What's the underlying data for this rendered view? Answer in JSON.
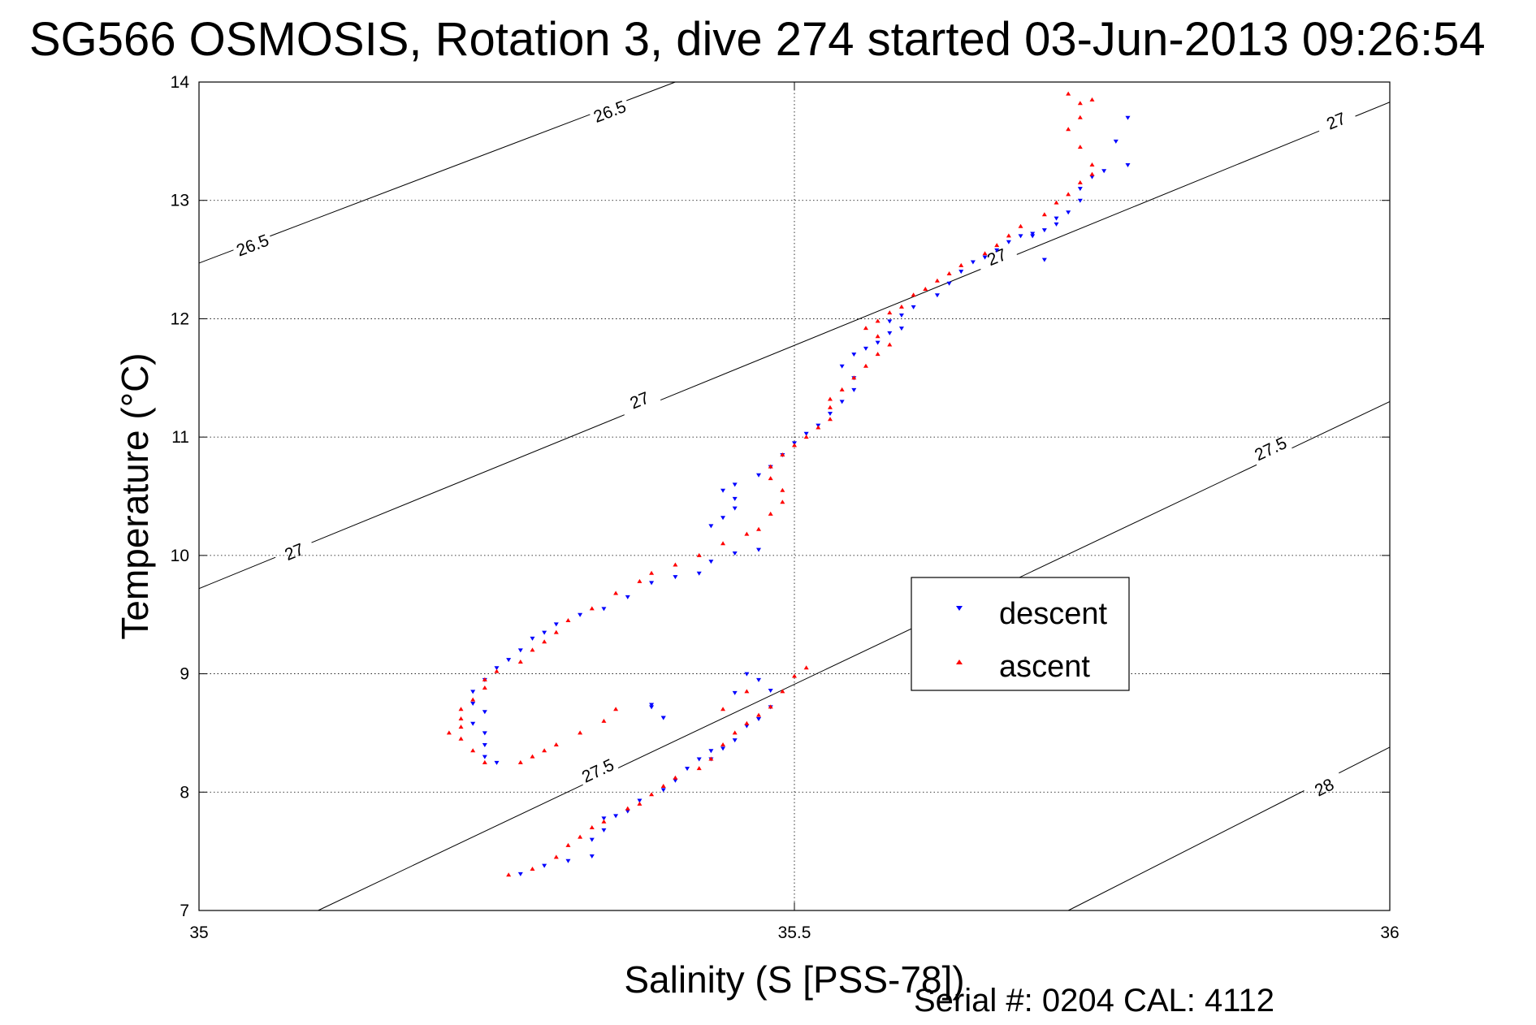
{
  "chart_data": {
    "type": "scatter",
    "title": "SG566 OSMOSIS, Rotation 3, dive 274 started 03-Jun-2013 09:26:54",
    "xlabel": "Salinity (S [PSS-78])",
    "ylabel": "Temperature (°C)",
    "xlim": [
      35,
      36
    ],
    "ylim": [
      7,
      14
    ],
    "xticks": [
      "35",
      "35.5",
      "36"
    ],
    "yticks": [
      "7",
      "8",
      "9",
      "10",
      "11",
      "12",
      "13",
      "14"
    ],
    "grid": true,
    "legend_position": "center-right",
    "footer": "Serial #: 0204  CAL: 4112",
    "colors": {
      "descent": "#0000ff",
      "ascent": "#ff0000",
      "contour": "#000000"
    },
    "contours": [
      {
        "level": "26.5",
        "points": [
          [
            35.0,
            12.47
          ],
          [
            35.4,
            14.0
          ]
        ],
        "labels": [
          [
            35.045,
            12.62
          ],
          [
            35.345,
            13.75
          ]
        ]
      },
      {
        "level": "27",
        "points": [
          [
            35.0,
            9.72
          ],
          [
            36.0,
            13.83
          ]
        ],
        "labels": [
          [
            35.08,
            10.03
          ],
          [
            35.37,
            11.31
          ],
          [
            35.67,
            12.52
          ],
          [
            35.955,
            13.67
          ]
        ]
      },
      {
        "level": "27.5",
        "points": [
          [
            35.1,
            7.0
          ],
          [
            36.0,
            11.3
          ]
        ],
        "labels": [
          [
            35.335,
            8.18
          ],
          [
            35.9,
            10.9
          ]
        ]
      },
      {
        "level": "28",
        "points": [
          [
            35.73,
            7.0
          ],
          [
            36.0,
            8.38
          ]
        ],
        "labels": [
          [
            35.945,
            8.04
          ]
        ]
      }
    ],
    "series": [
      {
        "name": "descent",
        "marker": "triangle-down",
        "points": [
          [
            35.27,
            7.31
          ],
          [
            35.29,
            7.38
          ],
          [
            35.31,
            7.42
          ],
          [
            35.33,
            7.46
          ],
          [
            35.33,
            7.6
          ],
          [
            35.34,
            7.68
          ],
          [
            35.34,
            7.78
          ],
          [
            35.35,
            7.8
          ],
          [
            35.36,
            7.84
          ],
          [
            35.37,
            7.93
          ],
          [
            35.39,
            8.02
          ],
          [
            35.4,
            8.1
          ],
          [
            35.41,
            8.2
          ],
          [
            35.42,
            8.28
          ],
          [
            35.43,
            8.28
          ],
          [
            35.43,
            8.35
          ],
          [
            35.44,
            8.37
          ],
          [
            35.45,
            8.44
          ],
          [
            35.46,
            8.56
          ],
          [
            35.47,
            8.62
          ],
          [
            35.48,
            8.72
          ],
          [
            35.48,
            8.86
          ],
          [
            35.47,
            8.95
          ],
          [
            35.46,
            9.0
          ],
          [
            35.45,
            8.84
          ],
          [
            35.39,
            8.63
          ],
          [
            35.38,
            8.72
          ],
          [
            35.39,
            8.63
          ],
          [
            35.38,
            8.74
          ],
          [
            35.25,
            8.25
          ],
          [
            35.24,
            8.3
          ],
          [
            35.24,
            8.4
          ],
          [
            35.24,
            8.5
          ],
          [
            35.23,
            8.58
          ],
          [
            35.24,
            8.68
          ],
          [
            35.23,
            8.75
          ],
          [
            35.23,
            8.85
          ],
          [
            35.24,
            8.95
          ],
          [
            35.25,
            9.05
          ],
          [
            35.26,
            9.12
          ],
          [
            35.27,
            9.2
          ],
          [
            35.28,
            9.3
          ],
          [
            35.29,
            9.35
          ],
          [
            35.3,
            9.42
          ],
          [
            35.32,
            9.5
          ],
          [
            35.34,
            9.55
          ],
          [
            35.36,
            9.65
          ],
          [
            35.38,
            9.77
          ],
          [
            35.4,
            9.82
          ],
          [
            35.42,
            9.85
          ],
          [
            35.43,
            9.95
          ],
          [
            35.45,
            10.02
          ],
          [
            35.47,
            10.05
          ],
          [
            35.43,
            10.25
          ],
          [
            35.44,
            10.32
          ],
          [
            35.45,
            10.4
          ],
          [
            35.45,
            10.48
          ],
          [
            35.44,
            10.55
          ],
          [
            35.45,
            10.6
          ],
          [
            35.47,
            10.68
          ],
          [
            35.48,
            10.75
          ],
          [
            35.49,
            10.85
          ],
          [
            35.5,
            10.95
          ],
          [
            35.51,
            11.03
          ],
          [
            35.52,
            11.1
          ],
          [
            35.53,
            11.2
          ],
          [
            35.54,
            11.3
          ],
          [
            35.55,
            11.4
          ],
          [
            35.55,
            11.5
          ],
          [
            35.54,
            11.6
          ],
          [
            35.55,
            11.7
          ],
          [
            35.56,
            11.75
          ],
          [
            35.57,
            11.8
          ],
          [
            35.58,
            11.88
          ],
          [
            35.59,
            11.92
          ],
          [
            35.58,
            11.98
          ],
          [
            35.59,
            12.03
          ],
          [
            35.6,
            12.1
          ],
          [
            35.62,
            12.2
          ],
          [
            35.63,
            12.3
          ],
          [
            35.64,
            12.4
          ],
          [
            35.65,
            12.48
          ],
          [
            35.66,
            12.52
          ],
          [
            35.67,
            12.58
          ],
          [
            35.68,
            12.65
          ],
          [
            35.69,
            12.7
          ],
          [
            35.7,
            12.72
          ],
          [
            35.71,
            12.75
          ],
          [
            35.72,
            12.8
          ],
          [
            35.73,
            12.9
          ],
          [
            35.74,
            13.0
          ],
          [
            35.74,
            13.1
          ],
          [
            35.75,
            13.2
          ],
          [
            35.76,
            13.25
          ],
          [
            35.78,
            13.3
          ],
          [
            35.77,
            13.5
          ],
          [
            35.78,
            13.7
          ],
          [
            35.71,
            12.5
          ],
          [
            35.7,
            12.7
          ],
          [
            35.72,
            12.85
          ]
        ]
      },
      {
        "name": "ascent",
        "marker": "triangle-up",
        "points": [
          [
            35.26,
            7.3
          ],
          [
            35.28,
            7.35
          ],
          [
            35.3,
            7.45
          ],
          [
            35.31,
            7.55
          ],
          [
            35.32,
            7.62
          ],
          [
            35.33,
            7.7
          ],
          [
            35.34,
            7.75
          ],
          [
            35.36,
            7.86
          ],
          [
            35.37,
            7.9
          ],
          [
            35.38,
            7.98
          ],
          [
            35.39,
            8.05
          ],
          [
            35.4,
            8.12
          ],
          [
            35.42,
            8.2
          ],
          [
            35.43,
            8.28
          ],
          [
            35.44,
            8.4
          ],
          [
            35.45,
            8.5
          ],
          [
            35.46,
            8.58
          ],
          [
            35.47,
            8.65
          ],
          [
            35.48,
            8.72
          ],
          [
            35.49,
            8.85
          ],
          [
            35.5,
            8.98
          ],
          [
            35.51,
            9.05
          ],
          [
            35.46,
            8.85
          ],
          [
            35.44,
            8.7
          ],
          [
            35.35,
            8.7
          ],
          [
            35.34,
            8.6
          ],
          [
            35.32,
            8.5
          ],
          [
            35.3,
            8.4
          ],
          [
            35.29,
            8.35
          ],
          [
            35.28,
            8.3
          ],
          [
            35.27,
            8.25
          ],
          [
            35.24,
            8.25
          ],
          [
            35.23,
            8.35
          ],
          [
            35.22,
            8.45
          ],
          [
            35.22,
            8.55
          ],
          [
            35.21,
            8.5
          ],
          [
            35.22,
            8.62
          ],
          [
            35.22,
            8.7
          ],
          [
            35.23,
            8.78
          ],
          [
            35.24,
            8.88
          ],
          [
            35.24,
            8.95
          ],
          [
            35.25,
            9.02
          ],
          [
            35.27,
            9.1
          ],
          [
            35.28,
            9.2
          ],
          [
            35.29,
            9.27
          ],
          [
            35.3,
            9.35
          ],
          [
            35.31,
            9.45
          ],
          [
            35.33,
            9.55
          ],
          [
            35.35,
            9.68
          ],
          [
            35.37,
            9.78
          ],
          [
            35.38,
            9.85
          ],
          [
            35.4,
            9.92
          ],
          [
            35.42,
            10.0
          ],
          [
            35.44,
            10.1
          ],
          [
            35.46,
            10.18
          ],
          [
            35.47,
            10.22
          ],
          [
            35.48,
            10.35
          ],
          [
            35.49,
            10.45
          ],
          [
            35.49,
            10.55
          ],
          [
            35.48,
            10.65
          ],
          [
            35.48,
            10.75
          ],
          [
            35.49,
            10.85
          ],
          [
            35.5,
            10.93
          ],
          [
            35.51,
            11.0
          ],
          [
            35.52,
            11.08
          ],
          [
            35.53,
            11.15
          ],
          [
            35.53,
            11.25
          ],
          [
            35.53,
            11.32
          ],
          [
            35.54,
            11.4
          ],
          [
            35.55,
            11.5
          ],
          [
            35.56,
            11.6
          ],
          [
            35.57,
            11.7
          ],
          [
            35.58,
            11.78
          ],
          [
            35.57,
            11.85
          ],
          [
            35.56,
            11.92
          ],
          [
            35.57,
            11.98
          ],
          [
            35.58,
            12.05
          ],
          [
            35.59,
            12.1
          ],
          [
            35.6,
            12.2
          ],
          [
            35.61,
            12.25
          ],
          [
            35.62,
            12.32
          ],
          [
            35.63,
            12.38
          ],
          [
            35.64,
            12.45
          ],
          [
            35.66,
            12.55
          ],
          [
            35.67,
            12.62
          ],
          [
            35.68,
            12.7
          ],
          [
            35.69,
            12.78
          ],
          [
            35.71,
            12.88
          ],
          [
            35.72,
            12.98
          ],
          [
            35.73,
            13.05
          ],
          [
            35.74,
            13.15
          ],
          [
            35.75,
            13.22
          ],
          [
            35.75,
            13.3
          ],
          [
            35.74,
            13.45
          ],
          [
            35.73,
            13.6
          ],
          [
            35.74,
            13.7
          ],
          [
            35.74,
            13.82
          ],
          [
            35.73,
            13.9
          ],
          [
            35.75,
            13.85
          ]
        ]
      }
    ]
  }
}
